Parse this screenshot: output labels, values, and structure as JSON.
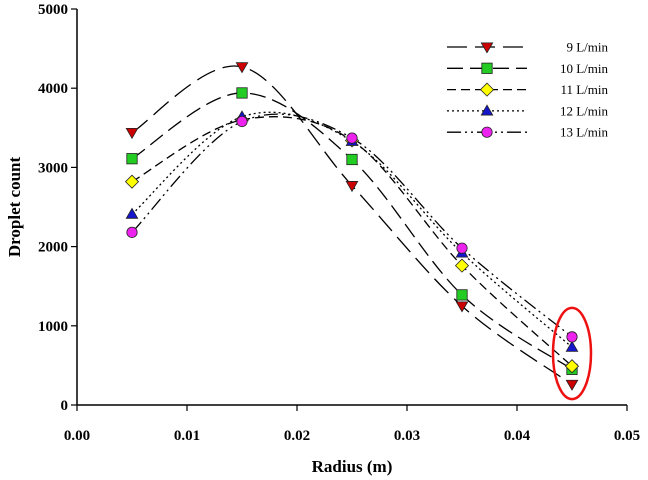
{
  "chart_data": {
    "type": "line",
    "title": "",
    "xlabel": "Radius (m)",
    "ylabel": "Droplet count",
    "xlim": [
      0.0,
      0.05
    ],
    "ylim": [
      0,
      5000
    ],
    "x_ticks": [
      "0.00",
      "0.01",
      "0.02",
      "0.03",
      "0.04",
      "0.05"
    ],
    "y_ticks": [
      "0",
      "1000",
      "2000",
      "3000",
      "4000",
      "5000"
    ],
    "grid": false,
    "legend_position": "top-right",
    "x": [
      0.005,
      0.015,
      0.025,
      0.035,
      0.045
    ],
    "series": [
      {
        "name": "9 L/min",
        "values": [
          3440,
          4270,
          2770,
          1250,
          260
        ],
        "marker": "triangle-down",
        "color": "#cc0000",
        "dash": "long-dash"
      },
      {
        "name": "10 L/min",
        "values": [
          3110,
          3940,
          3100,
          1390,
          450
        ],
        "marker": "square",
        "color": "#22cc22",
        "dash": "long-dash-2"
      },
      {
        "name": "11 L/min",
        "values": [
          2820,
          3600,
          3340,
          1760,
          490
        ],
        "marker": "diamond",
        "color": "#ffff00",
        "dash": "short-dash"
      },
      {
        "name": "12 L/min",
        "values": [
          2410,
          3640,
          3330,
          1920,
          730
        ],
        "marker": "triangle-up",
        "color": "#1515cc",
        "dash": "dotted"
      },
      {
        "name": "13 L/min",
        "values": [
          2180,
          3580,
          3370,
          1980,
          860
        ],
        "marker": "circle",
        "color": "#ee22ee",
        "dash": "dash-dot-dot"
      }
    ],
    "annotations": [
      {
        "type": "ellipse",
        "color": "#ee1111",
        "around_x": 0.045,
        "around_y_range": [
          150,
          1150
        ]
      }
    ]
  }
}
